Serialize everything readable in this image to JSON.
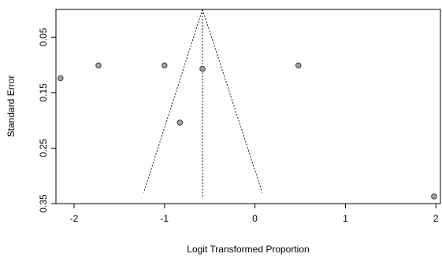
{
  "chart_data": {
    "type": "scatter",
    "subtype": "funnel-plot",
    "xlabel": "Logit Transformed Proportion",
    "ylabel": "Standard Error",
    "xlim": [
      -2.2,
      2.05
    ],
    "ylim": [
      0,
      0.35
    ],
    "y_reversed": true,
    "x_ticks": [
      -2,
      -1,
      0,
      1,
      2
    ],
    "x_tick_labels": [
      "-2",
      "-1",
      "0",
      "1",
      "2"
    ],
    "y_ticks": [
      0.05,
      0.15,
      0.25,
      0.35
    ],
    "y_tick_labels": [
      "0.05",
      "0.15",
      "0.25",
      "0.35"
    ],
    "grid": false,
    "points": [
      {
        "x": -2.15,
        "y": 0.124
      },
      {
        "x": -1.73,
        "y": 0.101
      },
      {
        "x": -1.0,
        "y": 0.101
      },
      {
        "x": -0.58,
        "y": 0.107
      },
      {
        "x": 0.48,
        "y": 0.101
      },
      {
        "x": -0.83,
        "y": 0.204
      },
      {
        "x": 1.98,
        "y": 0.337
      }
    ],
    "pooled_estimate": -0.58,
    "funnel": {
      "apex_x": -0.58,
      "apex_y": 0,
      "bottom_y": 0.33,
      "bottom_left_x": -1.23,
      "bottom_right_x": 0.08
    },
    "colors": {
      "point_fill": "#a0a0a0",
      "point_stroke": "#333333",
      "lines": "#000000"
    }
  }
}
